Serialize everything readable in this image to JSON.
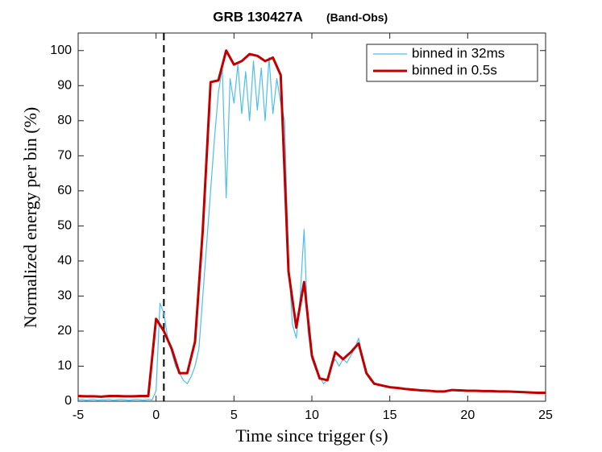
{
  "chart_data": {
    "type": "line",
    "title": "GRB 130427A",
    "subtitle": "(Band-Obs)",
    "x_label": "Time since trigger (s)",
    "y_label": "Normalized energy per bin (%)",
    "xlim": [
      -5,
      25
    ],
    "ylim": [
      0,
      105
    ],
    "xticks": [
      -5,
      0,
      5,
      10,
      15,
      20,
      25
    ],
    "yticks": [
      0,
      10,
      20,
      30,
      40,
      50,
      60,
      70,
      80,
      90,
      100
    ],
    "reference_x": 0.5,
    "legend": "upper right",
    "series": [
      {
        "name": "binned in 32ms",
        "color": "#4dbeee",
        "x": [
          -5,
          -4.75,
          -4.5,
          -4.25,
          -4,
          -3.75,
          -3.5,
          -3.25,
          -3,
          -2.75,
          -2.5,
          -2.25,
          -2,
          -1.75,
          -1.5,
          -1.25,
          -1,
          -0.75,
          -0.5,
          -0.25,
          0,
          0.25,
          0.5,
          0.75,
          1,
          1.25,
          1.5,
          1.75,
          2,
          2.25,
          2.5,
          2.75,
          3,
          3.25,
          3.5,
          3.75,
          4,
          4.25,
          4.5,
          4.75,
          5,
          5.25,
          5.5,
          5.75,
          6,
          6.25,
          6.5,
          6.75,
          7,
          7.25,
          7.5,
          7.75,
          8,
          8.25,
          8.5,
          8.75,
          9,
          9.25,
          9.5,
          9.75,
          10,
          10.25,
          10.5,
          10.75,
          11,
          11.25,
          11.5,
          11.75,
          12,
          12.25,
          12.5,
          12.75,
          13,
          13.25,
          13.5,
          13.75,
          14,
          14.5,
          15,
          15.5,
          16,
          16.5,
          17,
          17.5,
          18,
          18.5,
          19,
          19.5,
          20,
          20.5,
          21,
          21.5,
          22,
          22.5,
          23,
          23.5,
          24,
          24.5,
          25
        ],
        "values": [
          0.4,
          0.5,
          0.3,
          0.4,
          0.5,
          0.3,
          0.4,
          0.4,
          0.5,
          0.3,
          0.4,
          0.5,
          0.4,
          0.3,
          0.4,
          0.5,
          0.4,
          0.3,
          0.5,
          0.4,
          3,
          28,
          25,
          18,
          14,
          10,
          8,
          6,
          5,
          7,
          10,
          15,
          30,
          45,
          60,
          75,
          88,
          95,
          58,
          92,
          85,
          96,
          82,
          94,
          80,
          97,
          83,
          95,
          80,
          98,
          82,
          92,
          85,
          80,
          40,
          22,
          18,
          30,
          49,
          20,
          12,
          9,
          7,
          5,
          6,
          10,
          12,
          10,
          12,
          11,
          13,
          15,
          18,
          12,
          8,
          6,
          5,
          4.5,
          4,
          3.8,
          3.6,
          3.3,
          3.1,
          3,
          2.8,
          2.9,
          3.2,
          3,
          2.8,
          2.9,
          3,
          2.7,
          2.8,
          2.6,
          2.7,
          2.5,
          2.4,
          2.3,
          2.2
        ]
      },
      {
        "name": "binned in 0.5s",
        "color": "#c00000",
        "x": [
          -5,
          -4.5,
          -4,
          -3.5,
          -3,
          -2.5,
          -2,
          -1.5,
          -1,
          -0.5,
          0,
          0.5,
          1,
          1.5,
          2,
          2.5,
          3,
          3.5,
          4,
          4.5,
          5,
          5.5,
          6,
          6.5,
          7,
          7.5,
          8,
          8.5,
          9,
          9.5,
          10,
          10.5,
          11,
          11.5,
          12,
          12.5,
          13,
          13.5,
          14,
          14.5,
          15,
          15.5,
          16,
          16.5,
          17,
          17.5,
          18,
          18.5,
          19,
          19.5,
          20,
          20.5,
          21,
          21.5,
          22,
          22.5,
          23,
          23.5,
          24,
          24.5,
          25
        ],
        "values": [
          1.5,
          1.4,
          1.4,
          1.3,
          1.5,
          1.5,
          1.4,
          1.4,
          1.5,
          1.5,
          23.5,
          20,
          15,
          8,
          8,
          17,
          49,
          91,
          91.5,
          100,
          96,
          97,
          99,
          98.5,
          97,
          98,
          93,
          37,
          21,
          34,
          13,
          6.5,
          6,
          14,
          12,
          14,
          16.5,
          8,
          5,
          4.5,
          4,
          3.8,
          3.5,
          3.3,
          3.1,
          3,
          2.8,
          2.8,
          3.2,
          3.1,
          3,
          3,
          2.9,
          2.9,
          2.8,
          2.8,
          2.7,
          2.6,
          2.5,
          2.4,
          2.4
        ]
      }
    ]
  }
}
